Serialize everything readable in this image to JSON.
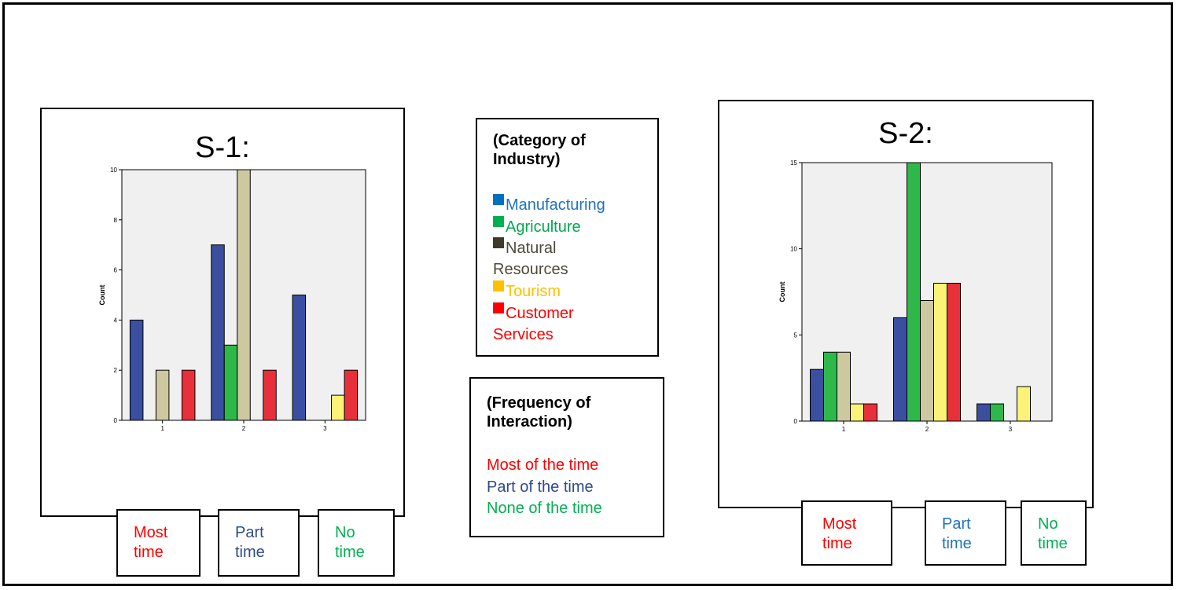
{
  "legend_category": {
    "title_line1": "(Category of",
    "title_line2": "Industry)",
    "items": [
      {
        "label": "Manufacturing",
        "color": "#1e73be",
        "swatch": "#0070c0"
      },
      {
        "label": "Agriculture",
        "color": "#00a84f",
        "swatch": "#00b050"
      },
      {
        "label": "Natural",
        "color": "#4d4a3a",
        "swatch": "#403a2a"
      },
      {
        "label": "Resources",
        "color": "#4d4a3a",
        "swatch": null
      },
      {
        "label": "Tourism",
        "color": "#ffc000",
        "swatch": "#ffc000"
      },
      {
        "label": "Customer",
        "color": "#ff0000",
        "swatch": "#ff0000"
      },
      {
        "label": "Services",
        "color": "#ff0000",
        "swatch": null
      }
    ]
  },
  "legend_frequency": {
    "title_line1": "(Frequency of",
    "title_line2": "Interaction)",
    "items": [
      {
        "label": "Most of the time",
        "color": "#ff0000"
      },
      {
        "label": "Part of the time",
        "color": "#2e4b8a"
      },
      {
        "label": "None of the time",
        "color": "#00b050"
      }
    ]
  },
  "s1_labels": [
    {
      "line1": "Most",
      "line2": "time",
      "color": "#ff0000"
    },
    {
      "line1": "Part",
      "line2": "time",
      "color": "#2e4b8a"
    },
    {
      "line1": "No",
      "line2": "time",
      "color": "#00b050"
    }
  ],
  "s2_labels": [
    {
      "line1": "Most",
      "line2": "time",
      "color": "#ff0000"
    },
    {
      "line1": "Part",
      "line2": "time",
      "color": "#1e73be"
    },
    {
      "line1": "No",
      "line2": "time",
      "color": "#00b050"
    }
  ],
  "series_colors": [
    "#3b4fa0",
    "#2eb84a",
    "#cdc8a0",
    "#fbf378",
    "#e8303a"
  ],
  "chart_data": [
    {
      "type": "bar",
      "title": "S-1:",
      "ylabel": "Count",
      "xlabel": "",
      "categories": [
        "1",
        "2",
        "3"
      ],
      "ylim": [
        0,
        10
      ],
      "yticks": [
        "0",
        "2",
        "4",
        "6",
        "8",
        "10"
      ],
      "series": [
        {
          "values": [
            4,
            7,
            5
          ]
        },
        {
          "values": [
            null,
            3,
            null
          ]
        },
        {
          "values": [
            2,
            10,
            null
          ]
        },
        {
          "values": [
            null,
            null,
            1
          ]
        },
        {
          "values": [
            2,
            2,
            2
          ]
        }
      ]
    },
    {
      "type": "bar",
      "title": "S-2:",
      "ylabel": "Count",
      "xlabel": "",
      "categories": [
        "1",
        "2",
        "3"
      ],
      "ylim": [
        0,
        15
      ],
      "yticks": [
        "0",
        "5",
        "10",
        "15"
      ],
      "series": [
        {
          "values": [
            3,
            6,
            1
          ]
        },
        {
          "values": [
            4,
            15,
            1
          ]
        },
        {
          "values": [
            4,
            7,
            null
          ]
        },
        {
          "values": [
            1,
            8,
            2
          ]
        },
        {
          "values": [
            1,
            8,
            null
          ]
        }
      ]
    }
  ]
}
